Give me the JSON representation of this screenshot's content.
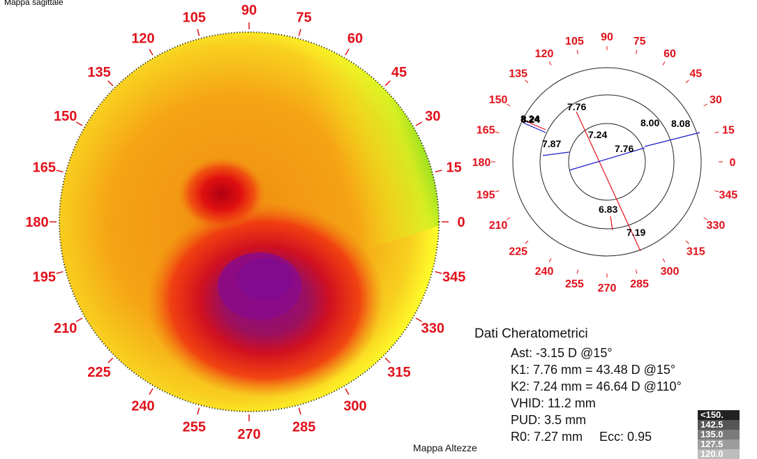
{
  "map": {
    "title": "Mappa sagittale",
    "footer_label": "Mappa Altezze",
    "degree_labels": [
      "0",
      "15",
      "30",
      "45",
      "60",
      "75",
      "90",
      "105",
      "120",
      "135",
      "150",
      "165",
      "180",
      "195",
      "210",
      "225",
      "240",
      "255",
      "270",
      "285",
      "300",
      "315",
      "330",
      "345"
    ]
  },
  "ring_diagram": {
    "degree_labels": [
      "0",
      "15",
      "30",
      "45",
      "60",
      "75",
      "90",
      "105",
      "120",
      "135",
      "150",
      "165",
      "180",
      "195",
      "210",
      "225",
      "240",
      "255",
      "270",
      "285",
      "300",
      "315",
      "330",
      "345"
    ],
    "values": {
      "outer_upper": "7.76",
      "inner_upper": "7.24",
      "outer_right_a": "8.00",
      "outer_right_b": "8.08",
      "left_a": "8.24",
      "left_b": "8.24",
      "left_inner": "7.87",
      "inner_right": "7.76",
      "inner_lower": "6.83",
      "outer_lower": "7.19"
    },
    "colors": {
      "steep_axis": "#e0101a",
      "flat_axis": "#1a1acc"
    }
  },
  "kerato": {
    "heading": "Dati Cheratometrici",
    "ast": "Ast: -3.15 D @15°",
    "k1": "K1: 7.76 mm = 43.48 D @15°",
    "k2": "K2: 7.24 mm = 46.64 D @110°",
    "vhid": "VHID: 11.2 mm",
    "pud": "PUD: 3.5 mm",
    "r0": "R0: 7.27 mm",
    "ecc": "Ecc: 0.95"
  },
  "legend": [
    {
      "label": "<150.",
      "color": "#222222"
    },
    {
      "label": "142.5",
      "color": "#555555"
    },
    {
      "label": "135.0",
      "color": "#7a7a7a"
    },
    {
      "label": "127.5",
      "color": "#9c9c9c"
    },
    {
      "label": "120.0",
      "color": "#bdbdbd"
    }
  ],
  "colors": {
    "degree_label": "#e0101a",
    "purple": "#8a0a8a",
    "red": "#e01010",
    "orange": "#f39a10",
    "yellow": "#ffff20",
    "green": "#20c020"
  }
}
